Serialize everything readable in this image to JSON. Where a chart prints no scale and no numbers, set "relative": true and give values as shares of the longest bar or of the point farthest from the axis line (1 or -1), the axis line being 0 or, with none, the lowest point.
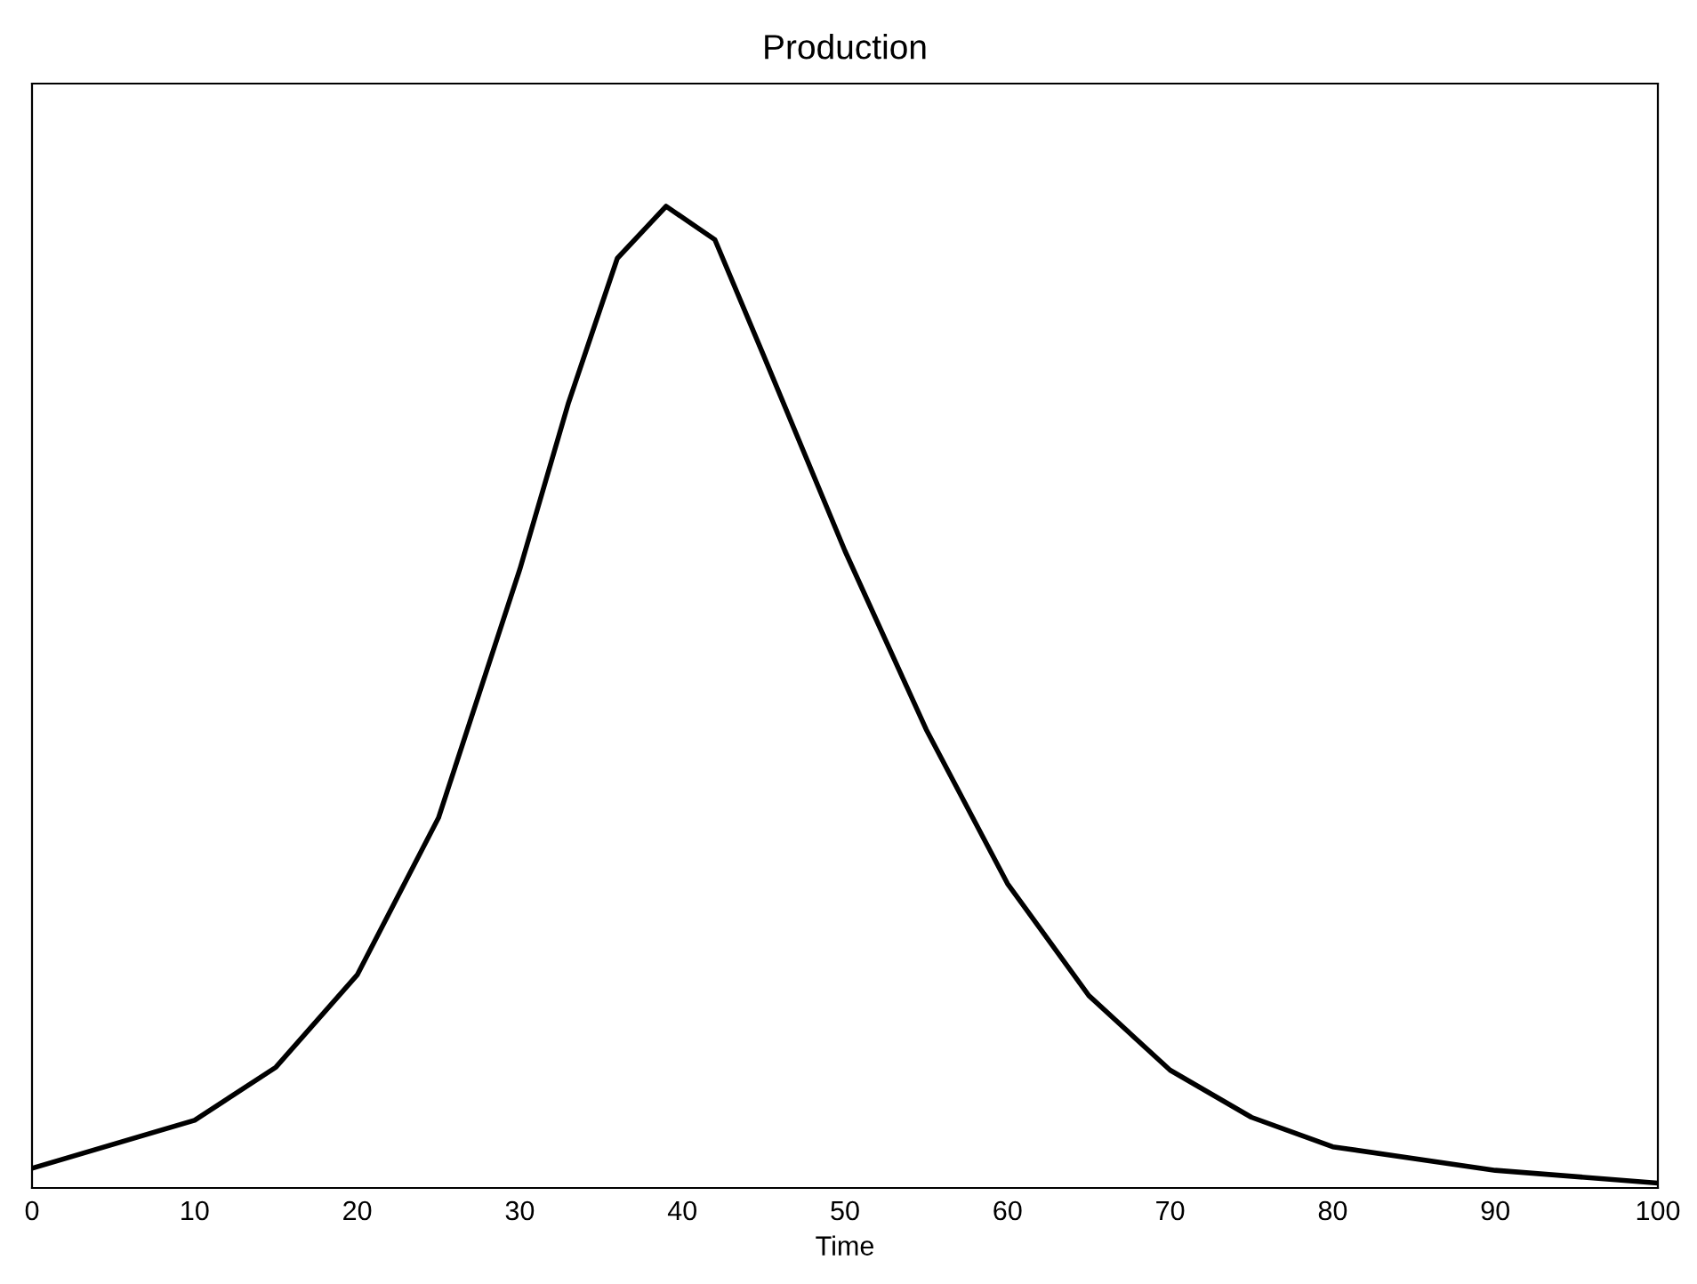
{
  "chart_data": {
    "type": "line",
    "title": "Production",
    "xlabel": "Time",
    "relative": true,
    "x": [
      0,
      10,
      15,
      20,
      25,
      30,
      33,
      36,
      39,
      42,
      45,
      50,
      55,
      60,
      65,
      70,
      75,
      80,
      90,
      100
    ],
    "series": [
      {
        "color": "#000000",
        "values": [
          0.02,
          0.069,
          0.123,
          0.217,
          0.377,
          0.63,
          0.8,
          0.947,
          1.0,
          0.966,
          0.848,
          0.649,
          0.467,
          0.31,
          0.196,
          0.12,
          0.072,
          0.042,
          0.018,
          0.005
        ]
      }
    ],
    "xlim": [
      0,
      100
    ],
    "xticks": [
      0,
      10,
      20,
      30,
      40,
      50,
      60,
      70,
      80,
      90,
      100
    ],
    "grid": false,
    "legend": false
  }
}
